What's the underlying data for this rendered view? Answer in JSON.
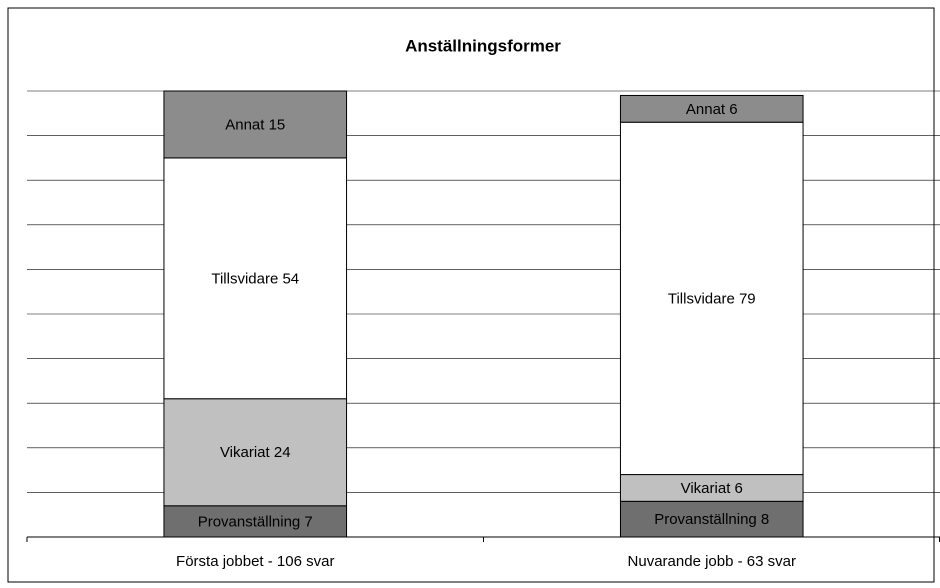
{
  "chart_data": {
    "type": "stacked_bar",
    "title": "Anställningsformer",
    "categories": [
      "Första jobbet - 106 svar",
      "Nuvarande jobb - 63 svar"
    ],
    "series": [
      {
        "name": "Provanställning",
        "color": "#6f6f6f",
        "values": [
          7,
          8
        ],
        "value_labels": [
          "Provanställning 7",
          "Provanställning 8"
        ]
      },
      {
        "name": "Vikariat",
        "color": "#c0c0c0",
        "values": [
          24,
          6
        ],
        "value_labels": [
          "Vikariat 24",
          "Vikariat 6"
        ]
      },
      {
        "name": "Tillsvidare",
        "color": "#ffffff",
        "values": [
          54,
          79
        ],
        "value_labels": [
          "Tillsvidare 54",
          "Tillsvidare 79"
        ]
      },
      {
        "name": "Annat",
        "color": "#8c8c8c",
        "values": [
          15,
          6
        ],
        "value_labels": [
          "Annat 15",
          "Annat 6"
        ]
      }
    ],
    "ylim": [
      0,
      100
    ],
    "yticks": [
      0,
      10,
      20,
      30,
      40,
      50,
      60,
      70,
      80,
      90,
      100
    ],
    "grid": true
  }
}
